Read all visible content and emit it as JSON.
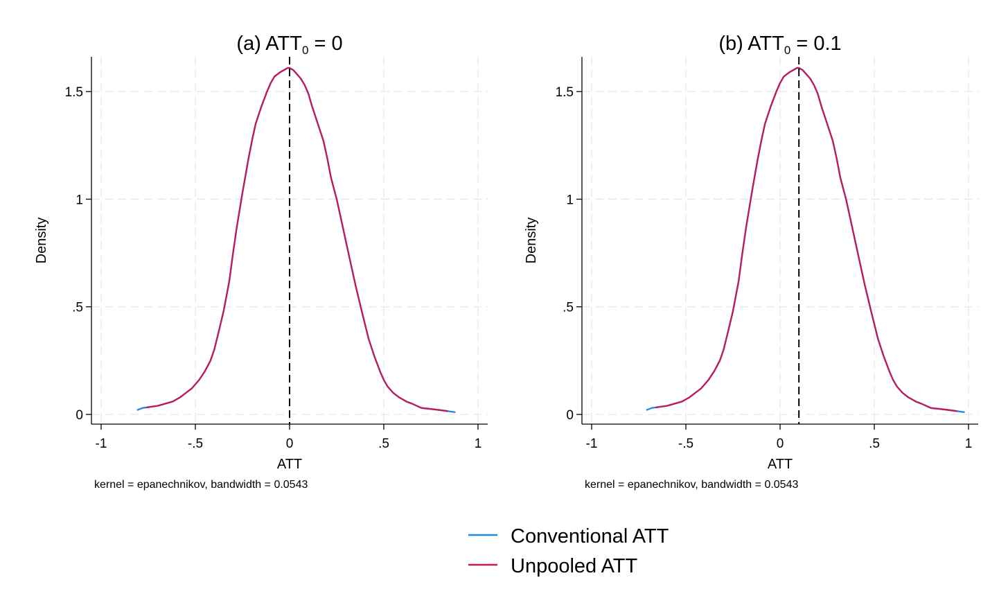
{
  "chart_data": [
    {
      "type": "line",
      "title": {
        "prefix": "(a) ATT",
        "subscript": "0",
        "suffix": " = 0"
      },
      "xlabel": "ATT",
      "ylabel": "Density",
      "note": "kernel = epanechnikov, bandwidth = 0.0543",
      "xlim": [
        -1,
        1
      ],
      "ylim": [
        0,
        1.6
      ],
      "xticks": [
        -1,
        -0.5,
        0,
        0.5,
        1
      ],
      "xtick_labels": [
        "-1",
        "-.5",
        "0",
        ".5",
        "1"
      ],
      "yticks": [
        0,
        0.5,
        1,
        1.5
      ],
      "ytick_labels": [
        "0",
        ".5",
        "1",
        "1.5"
      ],
      "grid": true,
      "reference_line_x": 0,
      "series": [
        {
          "name": "Conventional ATT",
          "color": "#1E88E5",
          "x": [
            -0.81,
            -0.78,
            -0.74,
            -0.7,
            -0.66,
            -0.62,
            -0.6,
            -0.58,
            -0.55,
            -0.52,
            -0.5,
            -0.48,
            -0.45,
            -0.42,
            -0.4,
            -0.38,
            -0.35,
            -0.32,
            -0.3,
            -0.28,
            -0.25,
            -0.22,
            -0.2,
            -0.18,
            -0.15,
            -0.12,
            -0.1,
            -0.08,
            -0.05,
            -0.03,
            -0.01,
            0.0,
            0.01,
            0.02,
            0.04,
            0.06,
            0.08,
            0.1,
            0.12,
            0.15,
            0.18,
            0.2,
            0.22,
            0.25,
            0.28,
            0.3,
            0.32,
            0.35,
            0.38,
            0.4,
            0.42,
            0.45,
            0.48,
            0.5,
            0.52,
            0.55,
            0.58,
            0.6,
            0.62,
            0.65,
            0.7,
            0.72,
            0.75,
            0.8,
            0.84,
            0.88
          ],
          "y": [
            0.02,
            0.03,
            0.035,
            0.04,
            0.05,
            0.06,
            0.07,
            0.08,
            0.1,
            0.12,
            0.14,
            0.16,
            0.2,
            0.25,
            0.3,
            0.37,
            0.48,
            0.62,
            0.75,
            0.87,
            1.03,
            1.18,
            1.27,
            1.35,
            1.43,
            1.5,
            1.54,
            1.57,
            1.59,
            1.6,
            1.61,
            1.61,
            1.605,
            1.6,
            1.58,
            1.56,
            1.53,
            1.49,
            1.43,
            1.35,
            1.27,
            1.19,
            1.1,
            1.0,
            0.88,
            0.8,
            0.72,
            0.6,
            0.49,
            0.42,
            0.35,
            0.27,
            0.2,
            0.16,
            0.13,
            0.1,
            0.08,
            0.07,
            0.06,
            0.05,
            0.03,
            0.028,
            0.025,
            0.02,
            0.015,
            0.01
          ]
        },
        {
          "name": "Unpooled ATT",
          "color": "#C2185B",
          "x": [
            -0.76,
            -0.74,
            -0.7,
            -0.66,
            -0.62,
            -0.6,
            -0.58,
            -0.55,
            -0.52,
            -0.5,
            -0.48,
            -0.45,
            -0.42,
            -0.4,
            -0.38,
            -0.35,
            -0.32,
            -0.3,
            -0.28,
            -0.25,
            -0.22,
            -0.2,
            -0.18,
            -0.15,
            -0.12,
            -0.1,
            -0.08,
            -0.05,
            -0.03,
            -0.01,
            0.0,
            0.01,
            0.02,
            0.04,
            0.06,
            0.08,
            0.1,
            0.12,
            0.15,
            0.18,
            0.2,
            0.22,
            0.25,
            0.28,
            0.3,
            0.32,
            0.35,
            0.38,
            0.4,
            0.42,
            0.45,
            0.48,
            0.5,
            0.52,
            0.55,
            0.58,
            0.6,
            0.62,
            0.65,
            0.7,
            0.72,
            0.75,
            0.8,
            0.84
          ],
          "y": [
            0.032,
            0.035,
            0.04,
            0.05,
            0.06,
            0.07,
            0.08,
            0.1,
            0.12,
            0.14,
            0.16,
            0.2,
            0.25,
            0.3,
            0.37,
            0.48,
            0.62,
            0.75,
            0.87,
            1.03,
            1.18,
            1.27,
            1.35,
            1.43,
            1.5,
            1.54,
            1.57,
            1.59,
            1.6,
            1.61,
            1.61,
            1.605,
            1.6,
            1.58,
            1.56,
            1.53,
            1.49,
            1.43,
            1.35,
            1.27,
            1.19,
            1.1,
            1.0,
            0.88,
            0.8,
            0.72,
            0.6,
            0.49,
            0.42,
            0.35,
            0.27,
            0.2,
            0.16,
            0.13,
            0.1,
            0.08,
            0.07,
            0.06,
            0.05,
            0.03,
            0.028,
            0.025,
            0.02,
            0.015
          ]
        }
      ]
    },
    {
      "type": "line",
      "title": {
        "prefix": "(b) ATT",
        "subscript": "0",
        "suffix": " = 0.1"
      },
      "xlabel": "ATT",
      "ylabel": "Density",
      "note": "kernel = epanechnikov, bandwidth = 0.0543",
      "xlim": [
        -1,
        1
      ],
      "ylim": [
        0,
        1.6
      ],
      "xticks": [
        -1,
        -0.5,
        0,
        0.5,
        1
      ],
      "xtick_labels": [
        "-1",
        "-.5",
        "0",
        ".5",
        "1"
      ],
      "yticks": [
        0,
        0.5,
        1,
        1.5
      ],
      "ytick_labels": [
        "0",
        ".5",
        "1",
        "1.5"
      ],
      "grid": true,
      "reference_line_x": 0.1,
      "series": [
        {
          "name": "Conventional ATT",
          "color": "#1E88E5",
          "x": [
            -0.71,
            -0.68,
            -0.64,
            -0.6,
            -0.56,
            -0.52,
            -0.5,
            -0.48,
            -0.45,
            -0.42,
            -0.4,
            -0.38,
            -0.35,
            -0.32,
            -0.3,
            -0.28,
            -0.25,
            -0.22,
            -0.2,
            -0.18,
            -0.15,
            -0.12,
            -0.1,
            -0.08,
            -0.05,
            -0.02,
            0.0,
            0.02,
            0.05,
            0.07,
            0.09,
            0.1,
            0.11,
            0.12,
            0.14,
            0.16,
            0.18,
            0.2,
            0.22,
            0.25,
            0.28,
            0.3,
            0.32,
            0.35,
            0.38,
            0.4,
            0.42,
            0.45,
            0.48,
            0.5,
            0.52,
            0.55,
            0.58,
            0.6,
            0.62,
            0.65,
            0.68,
            0.7,
            0.72,
            0.75,
            0.8,
            0.82,
            0.85,
            0.9,
            0.94,
            0.98
          ],
          "y": [
            0.02,
            0.03,
            0.035,
            0.04,
            0.05,
            0.06,
            0.07,
            0.08,
            0.1,
            0.12,
            0.14,
            0.16,
            0.2,
            0.25,
            0.3,
            0.37,
            0.48,
            0.62,
            0.75,
            0.87,
            1.03,
            1.18,
            1.27,
            1.35,
            1.43,
            1.5,
            1.54,
            1.57,
            1.59,
            1.6,
            1.61,
            1.61,
            1.605,
            1.6,
            1.58,
            1.56,
            1.53,
            1.49,
            1.43,
            1.35,
            1.27,
            1.19,
            1.1,
            1.0,
            0.88,
            0.8,
            0.72,
            0.6,
            0.49,
            0.42,
            0.35,
            0.27,
            0.2,
            0.16,
            0.13,
            0.1,
            0.08,
            0.07,
            0.06,
            0.05,
            0.03,
            0.028,
            0.025,
            0.02,
            0.015,
            0.01
          ]
        },
        {
          "name": "Unpooled ATT",
          "color": "#C2185B",
          "x": [
            -0.66,
            -0.64,
            -0.6,
            -0.56,
            -0.52,
            -0.5,
            -0.48,
            -0.45,
            -0.42,
            -0.4,
            -0.38,
            -0.35,
            -0.32,
            -0.3,
            -0.28,
            -0.25,
            -0.22,
            -0.2,
            -0.18,
            -0.15,
            -0.12,
            -0.1,
            -0.08,
            -0.05,
            -0.02,
            0.0,
            0.02,
            0.05,
            0.07,
            0.09,
            0.1,
            0.11,
            0.12,
            0.14,
            0.16,
            0.18,
            0.2,
            0.22,
            0.25,
            0.28,
            0.3,
            0.32,
            0.35,
            0.38,
            0.4,
            0.42,
            0.45,
            0.48,
            0.5,
            0.52,
            0.55,
            0.58,
            0.6,
            0.62,
            0.65,
            0.68,
            0.7,
            0.72,
            0.75,
            0.8,
            0.82,
            0.85,
            0.9,
            0.94
          ],
          "y": [
            0.032,
            0.035,
            0.04,
            0.05,
            0.06,
            0.07,
            0.08,
            0.1,
            0.12,
            0.14,
            0.16,
            0.2,
            0.25,
            0.3,
            0.37,
            0.48,
            0.62,
            0.75,
            0.87,
            1.03,
            1.18,
            1.27,
            1.35,
            1.43,
            1.5,
            1.54,
            1.57,
            1.59,
            1.6,
            1.61,
            1.61,
            1.605,
            1.6,
            1.58,
            1.56,
            1.53,
            1.49,
            1.43,
            1.35,
            1.27,
            1.19,
            1.1,
            1.0,
            0.88,
            0.8,
            0.72,
            0.6,
            0.49,
            0.42,
            0.35,
            0.27,
            0.2,
            0.16,
            0.13,
            0.1,
            0.08,
            0.07,
            0.06,
            0.05,
            0.03,
            0.028,
            0.025,
            0.02,
            0.015
          ]
        }
      ]
    }
  ],
  "legend": {
    "items": [
      {
        "label": "Conventional ATT",
        "color": "#1E88E5"
      },
      {
        "label": "Unpooled ATT",
        "color": "#C2185B"
      }
    ]
  }
}
